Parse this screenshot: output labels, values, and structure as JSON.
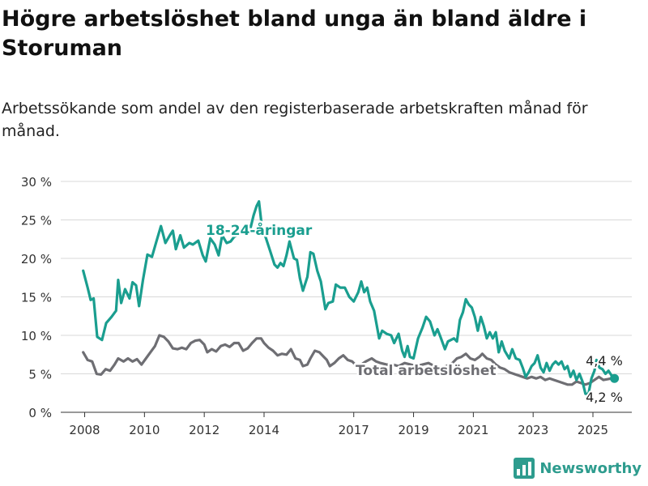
{
  "title": "Högre arbetslöshet bland unga än bland äldre i Storuman",
  "subtitle": "Arbetssökande som andel av den registerbaserade arbetskraften månad för månad.",
  "brand": {
    "name": "Newsworthy",
    "color": "#2e9c8e"
  },
  "chart_data": {
    "type": "line",
    "y_ticks": [
      "30 %",
      "25 %",
      "20 %",
      "15 %",
      "10 %",
      "5 %",
      "0 %"
    ],
    "y_tick_values": [
      30,
      25,
      20,
      15,
      10,
      5,
      0
    ],
    "x_ticks": [
      "2008",
      "2010",
      "2012",
      "2014",
      "2017",
      "2019",
      "2021",
      "2023",
      "2025"
    ],
    "x_tick_values": [
      2008,
      2010,
      2012,
      2014,
      2017,
      2019,
      2021,
      2023,
      2025
    ],
    "ylim": [
      0,
      30
    ],
    "xlim": [
      2007.2,
      2026.3
    ],
    "grid": true,
    "series": [
      {
        "name": "18-24-åringar",
        "color": "#1a9e8f",
        "end_label": "4,4 %",
        "points": [
          [
            2007.95,
            18.4
          ],
          [
            2008.1,
            16.2
          ],
          [
            2008.2,
            14.6
          ],
          [
            2008.3,
            14.8
          ],
          [
            2008.42,
            9.8
          ],
          [
            2008.58,
            9.4
          ],
          [
            2008.72,
            11.6
          ],
          [
            2008.9,
            12.4
          ],
          [
            2009.05,
            13.2
          ],
          [
            2009.12,
            17.2
          ],
          [
            2009.22,
            14.2
          ],
          [
            2009.35,
            16.0
          ],
          [
            2009.5,
            14.8
          ],
          [
            2009.6,
            16.9
          ],
          [
            2009.72,
            16.5
          ],
          [
            2009.82,
            13.8
          ],
          [
            2009.95,
            17.2
          ],
          [
            2010.1,
            20.5
          ],
          [
            2010.25,
            20.2
          ],
          [
            2010.4,
            22.2
          ],
          [
            2010.55,
            24.2
          ],
          [
            2010.7,
            22.0
          ],
          [
            2010.85,
            23.0
          ],
          [
            2010.95,
            23.6
          ],
          [
            2011.05,
            21.2
          ],
          [
            2011.2,
            23.0
          ],
          [
            2011.32,
            21.4
          ],
          [
            2011.5,
            22.0
          ],
          [
            2011.62,
            21.8
          ],
          [
            2011.8,
            22.3
          ],
          [
            2011.95,
            20.4
          ],
          [
            2012.05,
            19.6
          ],
          [
            2012.2,
            22.6
          ],
          [
            2012.35,
            21.8
          ],
          [
            2012.48,
            20.4
          ],
          [
            2012.6,
            23.0
          ],
          [
            2012.75,
            22.0
          ],
          [
            2012.88,
            22.2
          ],
          [
            2013.0,
            22.8
          ],
          [
            2013.1,
            23.0
          ],
          [
            2013.25,
            23.3
          ],
          [
            2013.35,
            24.3
          ],
          [
            2013.45,
            24.4
          ],
          [
            2013.55,
            24.0
          ],
          [
            2013.65,
            25.6
          ],
          [
            2013.75,
            26.8
          ],
          [
            2013.83,
            27.4
          ],
          [
            2013.95,
            23.4
          ],
          [
            2014.05,
            22.8
          ],
          [
            2014.2,
            21.0
          ],
          [
            2014.35,
            19.2
          ],
          [
            2014.45,
            18.8
          ],
          [
            2014.55,
            19.4
          ],
          [
            2014.65,
            19.0
          ],
          [
            2014.75,
            20.4
          ],
          [
            2014.85,
            22.2
          ],
          [
            2015.0,
            20.0
          ],
          [
            2015.1,
            19.8
          ],
          [
            2015.2,
            17.4
          ],
          [
            2015.3,
            15.8
          ],
          [
            2015.45,
            17.6
          ],
          [
            2015.55,
            20.8
          ],
          [
            2015.65,
            20.6
          ],
          [
            2015.78,
            18.4
          ],
          [
            2015.9,
            17.0
          ],
          [
            2016.05,
            13.4
          ],
          [
            2016.15,
            14.2
          ],
          [
            2016.3,
            14.4
          ],
          [
            2016.4,
            16.6
          ],
          [
            2016.55,
            16.2
          ],
          [
            2016.7,
            16.2
          ],
          [
            2016.85,
            15.0
          ],
          [
            2017.0,
            14.4
          ],
          [
            2017.15,
            15.6
          ],
          [
            2017.25,
            17.0
          ],
          [
            2017.35,
            15.6
          ],
          [
            2017.45,
            16.2
          ],
          [
            2017.55,
            14.4
          ],
          [
            2017.68,
            13.2
          ],
          [
            2017.85,
            9.6
          ],
          [
            2017.95,
            10.6
          ],
          [
            2018.1,
            10.2
          ],
          [
            2018.25,
            10.0
          ],
          [
            2018.35,
            9.0
          ],
          [
            2018.5,
            10.2
          ],
          [
            2018.62,
            8.0
          ],
          [
            2018.7,
            7.2
          ],
          [
            2018.8,
            8.6
          ],
          [
            2018.88,
            7.2
          ],
          [
            2019.0,
            7.0
          ],
          [
            2019.15,
            9.6
          ],
          [
            2019.3,
            11.0
          ],
          [
            2019.42,
            12.4
          ],
          [
            2019.55,
            11.8
          ],
          [
            2019.7,
            10.0
          ],
          [
            2019.8,
            10.8
          ],
          [
            2019.9,
            9.8
          ],
          [
            2020.05,
            8.2
          ],
          [
            2020.15,
            9.2
          ],
          [
            2020.25,
            9.4
          ],
          [
            2020.35,
            9.6
          ],
          [
            2020.45,
            9.2
          ],
          [
            2020.55,
            12.0
          ],
          [
            2020.65,
            13.0
          ],
          [
            2020.75,
            14.7
          ],
          [
            2020.85,
            14.0
          ],
          [
            2020.95,
            13.6
          ],
          [
            2021.05,
            12.4
          ],
          [
            2021.15,
            10.6
          ],
          [
            2021.25,
            12.4
          ],
          [
            2021.35,
            11.2
          ],
          [
            2021.45,
            9.6
          ],
          [
            2021.55,
            10.4
          ],
          [
            2021.65,
            9.6
          ],
          [
            2021.75,
            10.4
          ],
          [
            2021.85,
            7.8
          ],
          [
            2021.95,
            9.2
          ],
          [
            2022.05,
            8.0
          ],
          [
            2022.2,
            7.0
          ],
          [
            2022.3,
            8.2
          ],
          [
            2022.42,
            7.0
          ],
          [
            2022.55,
            6.8
          ],
          [
            2022.65,
            5.8
          ],
          [
            2022.75,
            4.6
          ],
          [
            2022.85,
            5.2
          ],
          [
            2022.95,
            6.0
          ],
          [
            2023.05,
            6.4
          ],
          [
            2023.15,
            7.4
          ],
          [
            2023.25,
            5.8
          ],
          [
            2023.35,
            5.2
          ],
          [
            2023.45,
            6.4
          ],
          [
            2023.55,
            5.4
          ],
          [
            2023.65,
            6.2
          ],
          [
            2023.75,
            6.6
          ],
          [
            2023.85,
            6.2
          ],
          [
            2023.95,
            6.6
          ],
          [
            2024.05,
            5.6
          ],
          [
            2024.15,
            6.0
          ],
          [
            2024.25,
            4.6
          ],
          [
            2024.35,
            5.4
          ],
          [
            2024.45,
            4.2
          ],
          [
            2024.55,
            5.0
          ],
          [
            2024.65,
            4.0
          ],
          [
            2024.75,
            2.4
          ],
          [
            2024.85,
            2.4
          ],
          [
            2024.95,
            4.4
          ],
          [
            2025.05,
            5.4
          ],
          [
            2025.12,
            6.8
          ],
          [
            2025.22,
            5.8
          ],
          [
            2025.32,
            5.6
          ],
          [
            2025.42,
            5.0
          ],
          [
            2025.52,
            5.4
          ],
          [
            2025.62,
            4.8
          ],
          [
            2025.72,
            4.4
          ]
        ]
      },
      {
        "name": "Total arbetslöshet",
        "color": "#6e6e73",
        "end_label": "4,2 %",
        "points": [
          [
            2007.95,
            7.8
          ],
          [
            2008.1,
            6.8
          ],
          [
            2008.25,
            6.6
          ],
          [
            2008.4,
            5.0
          ],
          [
            2008.55,
            4.9
          ],
          [
            2008.7,
            5.6
          ],
          [
            2008.85,
            5.4
          ],
          [
            2009.0,
            6.2
          ],
          [
            2009.12,
            7.0
          ],
          [
            2009.3,
            6.6
          ],
          [
            2009.45,
            7.0
          ],
          [
            2009.6,
            6.6
          ],
          [
            2009.75,
            6.9
          ],
          [
            2009.9,
            6.2
          ],
          [
            2010.05,
            7.0
          ],
          [
            2010.2,
            7.8
          ],
          [
            2010.35,
            8.6
          ],
          [
            2010.5,
            10.0
          ],
          [
            2010.65,
            9.8
          ],
          [
            2010.8,
            9.2
          ],
          [
            2010.95,
            8.3
          ],
          [
            2011.1,
            8.2
          ],
          [
            2011.25,
            8.4
          ],
          [
            2011.4,
            8.2
          ],
          [
            2011.55,
            9.0
          ],
          [
            2011.7,
            9.3
          ],
          [
            2011.85,
            9.4
          ],
          [
            2012.0,
            8.8
          ],
          [
            2012.1,
            7.8
          ],
          [
            2012.25,
            8.2
          ],
          [
            2012.4,
            7.9
          ],
          [
            2012.55,
            8.6
          ],
          [
            2012.7,
            8.8
          ],
          [
            2012.85,
            8.5
          ],
          [
            2013.0,
            9.0
          ],
          [
            2013.15,
            9.0
          ],
          [
            2013.3,
            8.0
          ],
          [
            2013.45,
            8.3
          ],
          [
            2013.6,
            9.0
          ],
          [
            2013.75,
            9.6
          ],
          [
            2013.9,
            9.6
          ],
          [
            2014.0,
            9.0
          ],
          [
            2014.15,
            8.4
          ],
          [
            2014.3,
            8.0
          ],
          [
            2014.45,
            7.4
          ],
          [
            2014.6,
            7.6
          ],
          [
            2014.75,
            7.5
          ],
          [
            2014.9,
            8.2
          ],
          [
            2015.05,
            7.0
          ],
          [
            2015.2,
            6.8
          ],
          [
            2015.3,
            6.0
          ],
          [
            2015.45,
            6.2
          ],
          [
            2015.55,
            7.0
          ],
          [
            2015.7,
            8.0
          ],
          [
            2015.85,
            7.8
          ],
          [
            2016.0,
            7.2
          ],
          [
            2016.1,
            6.8
          ],
          [
            2016.2,
            6.0
          ],
          [
            2016.35,
            6.4
          ],
          [
            2016.5,
            7.0
          ],
          [
            2016.65,
            7.4
          ],
          [
            2016.8,
            6.8
          ],
          [
            2016.95,
            6.6
          ],
          [
            2017.1,
            6.0
          ],
          [
            2017.25,
            6.2
          ],
          [
            2017.4,
            6.6
          ],
          [
            2017.6,
            7.0
          ],
          [
            2017.75,
            6.6
          ],
          [
            2017.9,
            6.4
          ],
          [
            2018.1,
            6.2
          ],
          [
            2018.3,
            6.2
          ],
          [
            2018.5,
            6.0
          ],
          [
            2018.7,
            6.4
          ],
          [
            2018.9,
            6.2
          ],
          [
            2019.1,
            6.0
          ],
          [
            2019.3,
            6.2
          ],
          [
            2019.5,
            6.4
          ],
          [
            2019.7,
            6.0
          ],
          [
            2019.9,
            5.8
          ],
          [
            2020.1,
            6.0
          ],
          [
            2020.3,
            6.4
          ],
          [
            2020.45,
            7.0
          ],
          [
            2020.6,
            7.2
          ],
          [
            2020.75,
            7.6
          ],
          [
            2020.9,
            7.0
          ],
          [
            2021.05,
            6.8
          ],
          [
            2021.2,
            7.2
          ],
          [
            2021.3,
            7.6
          ],
          [
            2021.45,
            7.0
          ],
          [
            2021.6,
            6.8
          ],
          [
            2021.75,
            6.2
          ],
          [
            2021.9,
            5.8
          ],
          [
            2022.05,
            5.6
          ],
          [
            2022.2,
            5.2
          ],
          [
            2022.35,
            5.0
          ],
          [
            2022.5,
            4.8
          ],
          [
            2022.65,
            4.6
          ],
          [
            2022.8,
            4.4
          ],
          [
            2022.95,
            4.6
          ],
          [
            2023.1,
            4.4
          ],
          [
            2023.25,
            4.6
          ],
          [
            2023.4,
            4.2
          ],
          [
            2023.55,
            4.4
          ],
          [
            2023.7,
            4.2
          ],
          [
            2023.85,
            4.0
          ],
          [
            2024.0,
            3.8
          ],
          [
            2024.15,
            3.6
          ],
          [
            2024.3,
            3.6
          ],
          [
            2024.45,
            4.0
          ],
          [
            2024.6,
            3.8
          ],
          [
            2024.75,
            3.6
          ],
          [
            2024.9,
            3.8
          ],
          [
            2025.05,
            4.2
          ],
          [
            2025.2,
            4.6
          ],
          [
            2025.35,
            4.2
          ],
          [
            2025.5,
            4.3
          ],
          [
            2025.62,
            4.4
          ],
          [
            2025.72,
            4.2
          ]
        ]
      }
    ]
  }
}
